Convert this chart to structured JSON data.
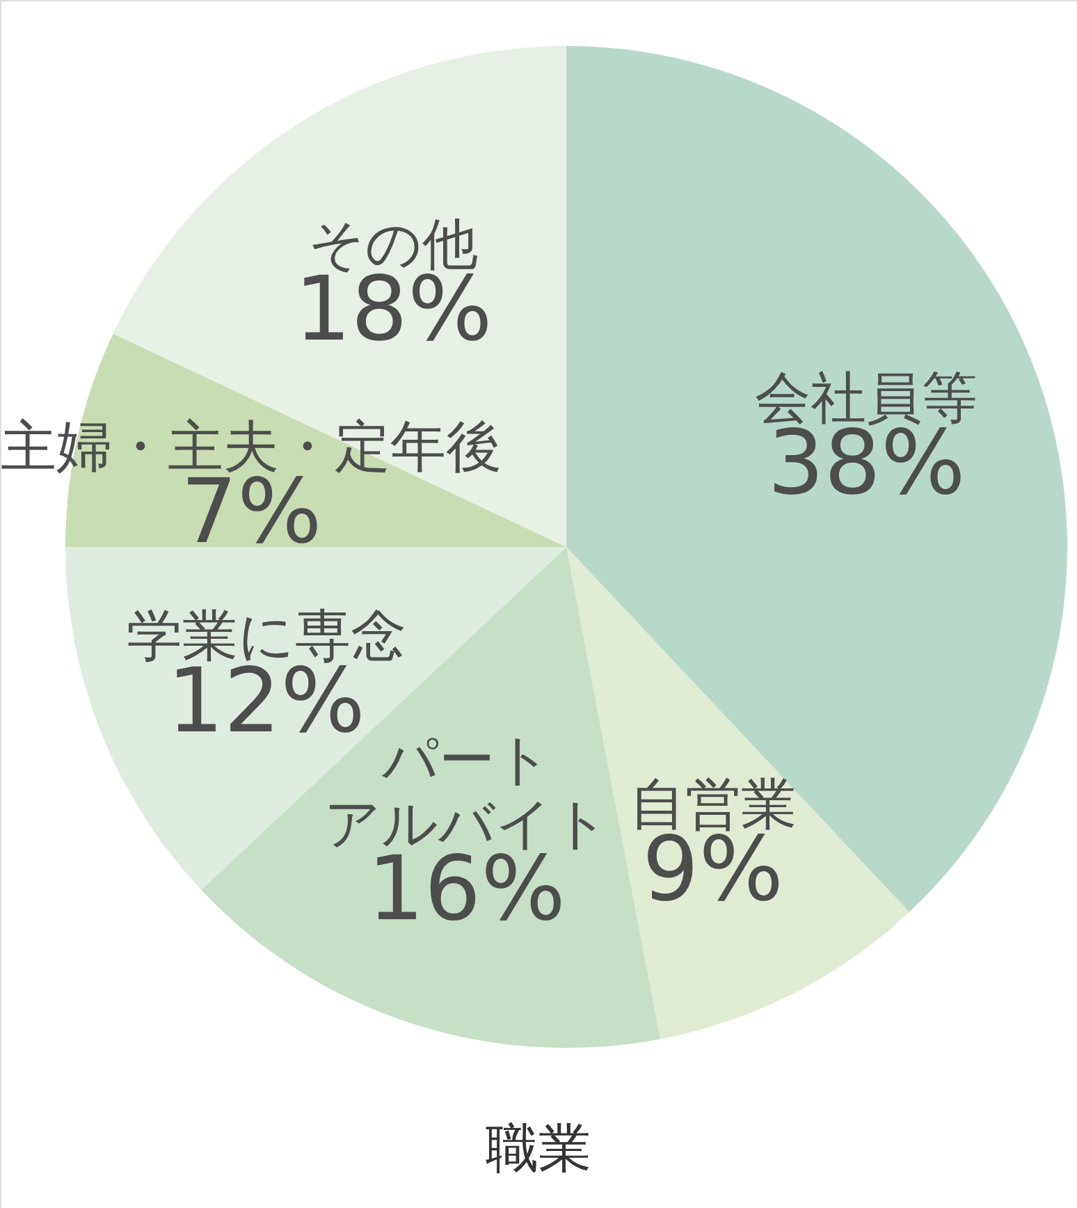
{
  "chart_data": {
    "type": "pie",
    "title": "職業",
    "categories": [
      "会社員等",
      "自営業",
      "パートアルバイト",
      "学業に専念",
      "主婦・主夫・定年後",
      "その他"
    ],
    "values": [
      38,
      9,
      16,
      12,
      7,
      18
    ],
    "colors": [
      "#b8d9c9",
      "#e0ebd3",
      "#c6dfc6",
      "#deece0",
      "#c8ddb3",
      "#e6f0e5"
    ],
    "value_labels": [
      "38%",
      "9%",
      "16%",
      "12%",
      "7%",
      "18%"
    ]
  }
}
